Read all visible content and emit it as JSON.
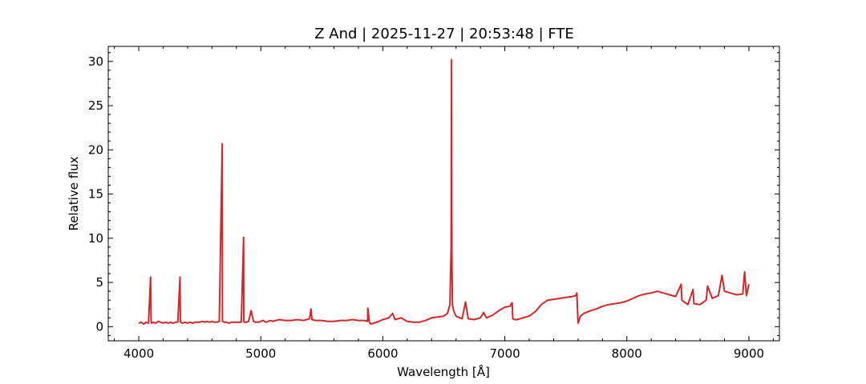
{
  "chart_data": {
    "type": "line",
    "title": "Z And | 2025-11-27 | 20:53:48 | FTE",
    "xlabel": "Wavelength [Å]",
    "ylabel": "Relative flux",
    "xlim": [
      3750,
      9250
    ],
    "ylim": [
      -1.6,
      31.7
    ],
    "xticks": [
      4000,
      5000,
      6000,
      7000,
      8000,
      9000
    ],
    "yticks": [
      0,
      5,
      10,
      15,
      20,
      25,
      30
    ],
    "grid": false,
    "series": [
      {
        "color": "#d62728",
        "x": [
          4000,
          4020,
          4040,
          4060,
          4080,
          4097,
          4101,
          4105,
          4120,
          4140,
          4160,
          4180,
          4200,
          4220,
          4240,
          4260,
          4280,
          4300,
          4320,
          4338,
          4341,
          4344,
          4360,
          4380,
          4400,
          4420,
          4440,
          4460,
          4480,
          4500,
          4520,
          4540,
          4560,
          4580,
          4600,
          4620,
          4640,
          4660,
          4684,
          4686,
          4688,
          4700,
          4720,
          4740,
          4760,
          4780,
          4800,
          4820,
          4840,
          4859,
          4861,
          4863,
          4880,
          4900,
          4921,
          4940,
          4960,
          4980,
          5000,
          5020,
          5040,
          5060,
          5080,
          5100,
          5150,
          5200,
          5250,
          5300,
          5350,
          5400,
          5411,
          5420,
          5450,
          5500,
          5550,
          5600,
          5650,
          5700,
          5750,
          5800,
          5850,
          5875,
          5877,
          5890,
          5900,
          5950,
          6000,
          6050,
          6080,
          6100,
          6150,
          6200,
          6250,
          6300,
          6350,
          6400,
          6450,
          6500,
          6530,
          6550,
          6560,
          6563,
          6566,
          6570,
          6580,
          6600,
          6630,
          6650,
          6678,
          6700,
          6750,
          6800,
          6825,
          6850,
          6900,
          6950,
          7000,
          7040,
          7060,
          7065,
          7080,
          7100,
          7150,
          7200,
          7250,
          7300,
          7350,
          7400,
          7450,
          7500,
          7550,
          7580,
          7590,
          7600,
          7620,
          7650,
          7700,
          7750,
          7800,
          7850,
          7900,
          7950,
          8000,
          8050,
          8100,
          8150,
          8200,
          8250,
          8300,
          8350,
          8400,
          8445,
          8450,
          8500,
          8542,
          8550,
          8600,
          8650,
          8662,
          8700,
          8750,
          8780,
          8800,
          8850,
          8900,
          8950,
          8965,
          8980,
          9000
        ],
        "y": [
          0.4,
          0.5,
          0.3,
          0.5,
          0.4,
          5.6,
          0.6,
          0.4,
          0.5,
          0.4,
          0.6,
          0.5,
          0.4,
          0.5,
          0.4,
          0.5,
          0.4,
          0.5,
          0.5,
          5.6,
          0.6,
          0.5,
          0.4,
          0.5,
          0.4,
          0.5,
          0.4,
          0.5,
          0.5,
          0.5,
          0.6,
          0.5,
          0.6,
          0.5,
          0.6,
          0.5,
          0.5,
          0.6,
          20.7,
          0.8,
          0.6,
          0.5,
          0.5,
          0.4,
          0.5,
          0.5,
          0.5,
          0.5,
          0.5,
          10.1,
          0.7,
          0.5,
          0.5,
          0.6,
          1.8,
          0.6,
          0.5,
          0.5,
          0.6,
          0.7,
          0.5,
          0.6,
          0.7,
          0.6,
          0.8,
          0.7,
          0.7,
          0.8,
          0.7,
          0.9,
          2.0,
          0.8,
          0.7,
          0.7,
          0.6,
          0.6,
          0.7,
          0.7,
          0.8,
          0.7,
          0.7,
          0.6,
          2.1,
          0.5,
          0.3,
          0.5,
          0.8,
          1.0,
          1.5,
          0.8,
          1.0,
          0.6,
          0.5,
          0.5,
          0.7,
          1.0,
          1.1,
          1.2,
          1.5,
          2.5,
          9.0,
          30.2,
          8.5,
          2.5,
          1.8,
          1.2,
          1.0,
          0.9,
          2.8,
          0.9,
          0.8,
          1.0,
          1.6,
          1.0,
          1.3,
          1.8,
          2.2,
          2.3,
          2.7,
          0.9,
          0.8,
          0.8,
          1.0,
          1.2,
          1.7,
          2.5,
          3.0,
          3.1,
          3.2,
          3.3,
          3.4,
          3.5,
          3.8,
          0.4,
          1.2,
          1.5,
          1.8,
          2.0,
          2.3,
          2.5,
          2.6,
          2.7,
          2.9,
          3.2,
          3.5,
          3.7,
          3.8,
          4.0,
          3.8,
          3.6,
          3.4,
          4.8,
          3.0,
          2.5,
          4.2,
          2.6,
          2.5,
          3.0,
          4.6,
          3.2,
          3.5,
          5.8,
          4.0,
          3.8,
          3.6,
          3.7,
          6.2,
          3.5,
          4.8
        ]
      }
    ]
  }
}
